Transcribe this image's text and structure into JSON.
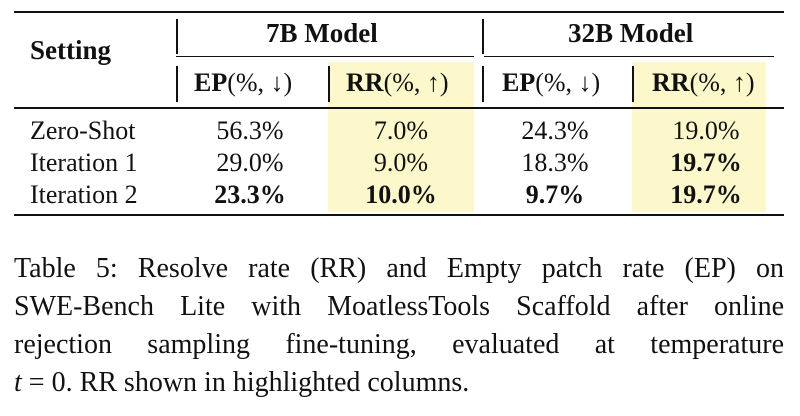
{
  "table": {
    "setting_header": "Setting",
    "groups": [
      "7B Model",
      "32B Model"
    ],
    "subheaders": [
      {
        "metric": "EP",
        "rest": "(%, ↓)"
      },
      {
        "metric": "RR",
        "rest": "(%, ↑)"
      },
      {
        "metric": "EP",
        "rest": "(%, ↓)"
      },
      {
        "metric": "RR",
        "rest": "(%, ↑)"
      }
    ],
    "rows": [
      {
        "setting": "Zero-Shot",
        "values": [
          "56.3%",
          "7.0%",
          "24.3%",
          "19.0%"
        ],
        "bold": [
          false,
          false,
          false,
          false
        ]
      },
      {
        "setting": "Iteration 1",
        "values": [
          "29.0%",
          "9.0%",
          "18.3%",
          "19.7%"
        ],
        "bold": [
          false,
          false,
          false,
          true
        ]
      },
      {
        "setting": "Iteration 2",
        "values": [
          "23.3%",
          "10.0%",
          "9.7%",
          "19.7%"
        ],
        "bold": [
          true,
          true,
          true,
          true
        ]
      }
    ],
    "highlight_color": "#fcf8cc"
  },
  "caption": {
    "line1": "Table 5: Resolve rate (RR) and Empty patch rate (EP) on",
    "line2": "SWE-Bench Lite with MoatlessTools Scaffold after online",
    "line3": "rejection sampling fine-tuning, evaluated at temperature",
    "line4_var": "t",
    "line4_rest": " = 0. RR shown in highlighted columns."
  }
}
